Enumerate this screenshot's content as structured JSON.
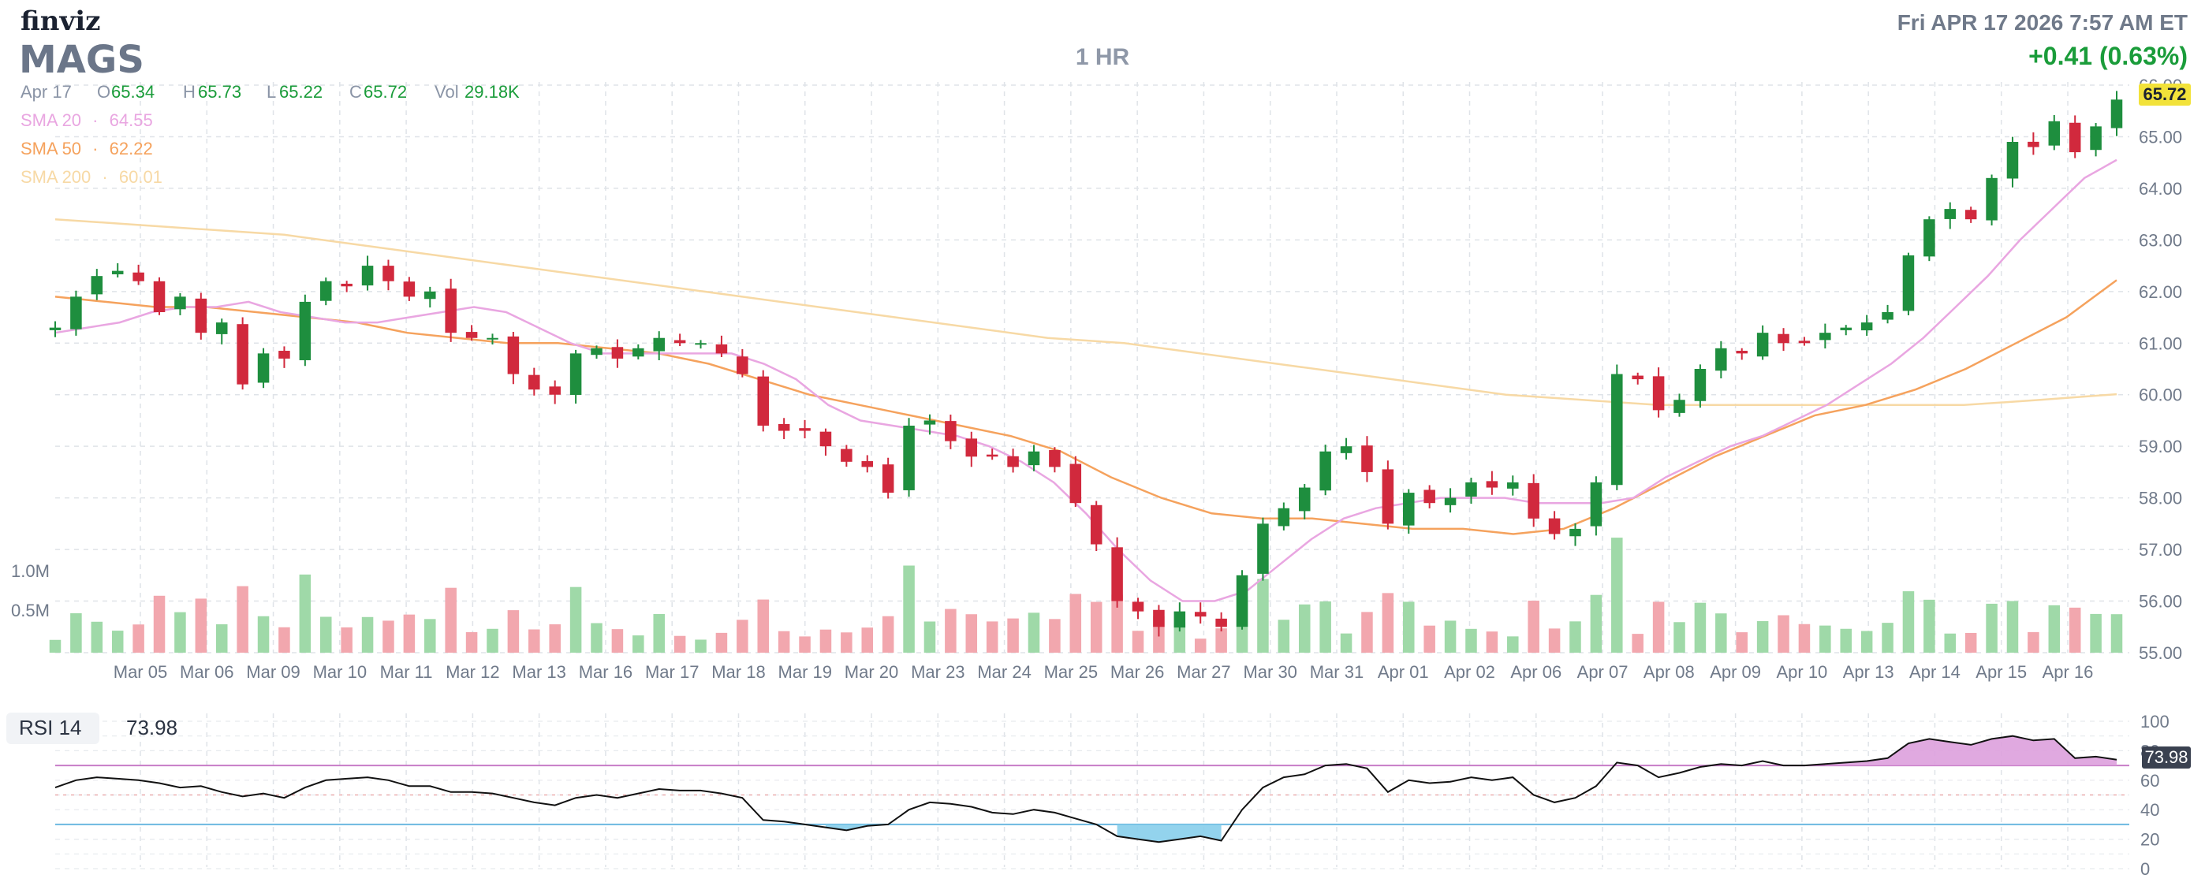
{
  "brand": "finviz",
  "header": {
    "ticker": "MAGS",
    "timeframe": "1 HR",
    "datetime": "Fri APR 17 2026 7:57 AM ET",
    "change": "+0.41 (0.63%)"
  },
  "ohlc": {
    "date": "Apr 17",
    "o_label": "O",
    "o": "65.34",
    "h_label": "H",
    "h": "65.73",
    "l_label": "L",
    "l": "65.22",
    "c_label": "C",
    "c": "65.72",
    "vol_label": "Vol",
    "vol": "29.18K"
  },
  "indicators": [
    {
      "label": "SMA 20",
      "sep": "·",
      "value": "64.55",
      "color": "#e9a6e1"
    },
    {
      "label": "SMA 50",
      "sep": "·",
      "value": "62.22",
      "color": "#f5a25d"
    },
    {
      "label": "SMA 200",
      "sep": "·",
      "value": "60.01",
      "color": "#f7d9a5"
    }
  ],
  "rsi": {
    "label": "RSI 14",
    "value": "73.98",
    "ticks": [
      "100",
      "80",
      "60",
      "40",
      "20",
      "0"
    ]
  },
  "colors": {
    "up": "#1e8e3e",
    "down": "#d1293d",
    "vol_up": "#9fd9a8",
    "vol_down": "#f2a7ae",
    "price_tag": "#f2e23a",
    "rsi_over": "#dda0dd",
    "rsi_under": "#87ceeb"
  },
  "chart_data": {
    "type": "candlestick",
    "price_axis": {
      "min": 55.0,
      "max": 66.0,
      "ticks": [
        "55.00",
        "56.00",
        "57.00",
        "58.00",
        "59.00",
        "60.00",
        "61.00",
        "62.00",
        "63.00",
        "64.00",
        "65.00",
        "66.00"
      ]
    },
    "last_price": "65.72",
    "volume_axis": {
      "ticks": [
        "1.0M",
        "0.5M"
      ]
    },
    "dates": [
      "Mar 05",
      "Mar 06",
      "Mar 09",
      "Mar 10",
      "Mar 11",
      "Mar 12",
      "Mar 13",
      "Mar 16",
      "Mar 17",
      "Mar 18",
      "Mar 19",
      "Mar 20",
      "Mar 23",
      "Mar 24",
      "Mar 25",
      "Mar 26",
      "Mar 27",
      "Mar 30",
      "Mar 31",
      "Apr 01",
      "Apr 02",
      "Apr 06",
      "Apr 07",
      "Apr 08",
      "Apr 09",
      "Apr 10",
      "Apr 13",
      "Apr 14",
      "Apr 15",
      "Apr 16"
    ],
    "close_path": [
      61.3,
      61.9,
      62.3,
      62.4,
      62.2,
      61.6,
      61.9,
      61.2,
      61.4,
      60.2,
      60.8,
      60.7,
      61.8,
      62.2,
      62.1,
      62.5,
      62.2,
      61.9,
      62.0,
      61.2,
      61.1,
      61.1,
      60.4,
      60.1,
      60.0,
      60.8,
      60.9,
      60.7,
      60.9,
      61.1,
      61.0,
      61.0,
      60.8,
      60.4,
      59.4,
      59.3,
      59.3,
      59.0,
      58.7,
      58.6,
      58.1,
      59.4,
      59.5,
      59.1,
      58.8,
      58.8,
      58.6,
      58.9,
      58.6,
      57.9,
      57.1,
      56.0,
      55.8,
      55.5,
      55.8,
      55.7,
      55.5,
      56.5,
      57.5,
      57.8,
      58.2,
      58.9,
      59.0,
      58.5,
      57.5,
      58.1,
      57.9,
      58.0,
      58.3,
      58.2,
      58.3,
      57.6,
      57.3,
      57.4,
      58.3,
      60.4,
      60.3,
      59.7,
      59.9,
      60.5,
      60.9,
      60.8,
      61.2,
      61.0,
      61.0,
      61.2,
      61.3,
      61.4,
      61.6,
      62.7,
      63.4,
      63.6,
      63.4,
      64.2,
      64.9,
      64.8,
      65.3,
      64.7,
      65.2,
      65.72
    ],
    "sma20": [
      61.2,
      61.3,
      61.4,
      61.6,
      61.7,
      61.7,
      61.8,
      61.6,
      61.5,
      61.4,
      61.4,
      61.5,
      61.6,
      61.7,
      61.6,
      61.3,
      61.0,
      60.8,
      60.8,
      60.8,
      60.8,
      60.8,
      60.6,
      60.3,
      59.8,
      59.5,
      59.4,
      59.3,
      59.2,
      59.0,
      58.7,
      58.3,
      57.7,
      57.0,
      56.4,
      56.0,
      56.0,
      56.2,
      56.7,
      57.2,
      57.6,
      57.8,
      57.9,
      58.0,
      58.0,
      58.0,
      57.9,
      57.9,
      57.9,
      58.0,
      58.4,
      58.7,
      59.0,
      59.2,
      59.5,
      59.8,
      60.2,
      60.6,
      61.1,
      61.7,
      62.3,
      63.0,
      63.6,
      64.2,
      64.55
    ],
    "sma50": [
      61.9,
      61.8,
      61.7,
      61.7,
      61.6,
      61.5,
      61.4,
      61.2,
      61.1,
      61.0,
      61.0,
      60.9,
      60.8,
      60.6,
      60.3,
      60.0,
      59.8,
      59.6,
      59.4,
      59.2,
      58.9,
      58.4,
      58.0,
      57.7,
      57.6,
      57.6,
      57.5,
      57.4,
      57.4,
      57.3,
      57.4,
      57.8,
      58.3,
      58.8,
      59.2,
      59.6,
      59.8,
      60.1,
      60.5,
      61.0,
      61.5,
      62.22
    ],
    "sma200": [
      63.4,
      63.3,
      63.2,
      63.1,
      62.9,
      62.7,
      62.5,
      62.3,
      62.1,
      61.9,
      61.7,
      61.5,
      61.3,
      61.1,
      61.0,
      60.8,
      60.6,
      60.4,
      60.2,
      60.0,
      59.9,
      59.8,
      59.8,
      59.8,
      59.8,
      59.8,
      59.9,
      60.01
    ],
    "rsi_path": [
      55,
      60,
      62,
      61,
      60,
      58,
      55,
      56,
      52,
      49,
      51,
      48,
      55,
      60,
      61,
      62,
      60,
      56,
      56,
      52,
      52,
      51,
      48,
      45,
      43,
      48,
      50,
      48,
      51,
      54,
      53,
      53,
      51,
      48,
      33,
      32,
      30,
      28,
      26,
      29,
      30,
      40,
      45,
      44,
      42,
      38,
      37,
      40,
      38,
      34,
      30,
      22,
      20,
      18,
      20,
      22,
      19,
      40,
      55,
      62,
      64,
      70,
      71,
      68,
      52,
      60,
      58,
      59,
      62,
      60,
      62,
      50,
      45,
      48,
      56,
      72,
      70,
      62,
      65,
      69,
      71,
      70,
      73,
      70,
      70,
      71,
      72,
      73,
      75,
      85,
      88,
      86,
      84,
      88,
      90,
      87,
      88,
      75,
      76,
      73.98
    ]
  }
}
